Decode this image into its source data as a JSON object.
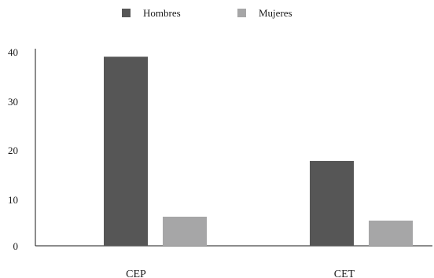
{
  "chart_data": {
    "type": "bar",
    "categories": [
      "CEP",
      "CET"
    ],
    "series": [
      {
        "name": "Hombres",
        "values": [
          39,
          17.5
        ],
        "color": "#565656"
      },
      {
        "name": "Mujeres",
        "values": [
          6,
          5.2
        ],
        "color": "#a6a6a7"
      }
    ],
    "y_ticks": [
      "0",
      "10",
      "20",
      "30",
      "40"
    ],
    "ylim": [
      0,
      40
    ],
    "grid": false,
    "legend_position": "top-center"
  }
}
